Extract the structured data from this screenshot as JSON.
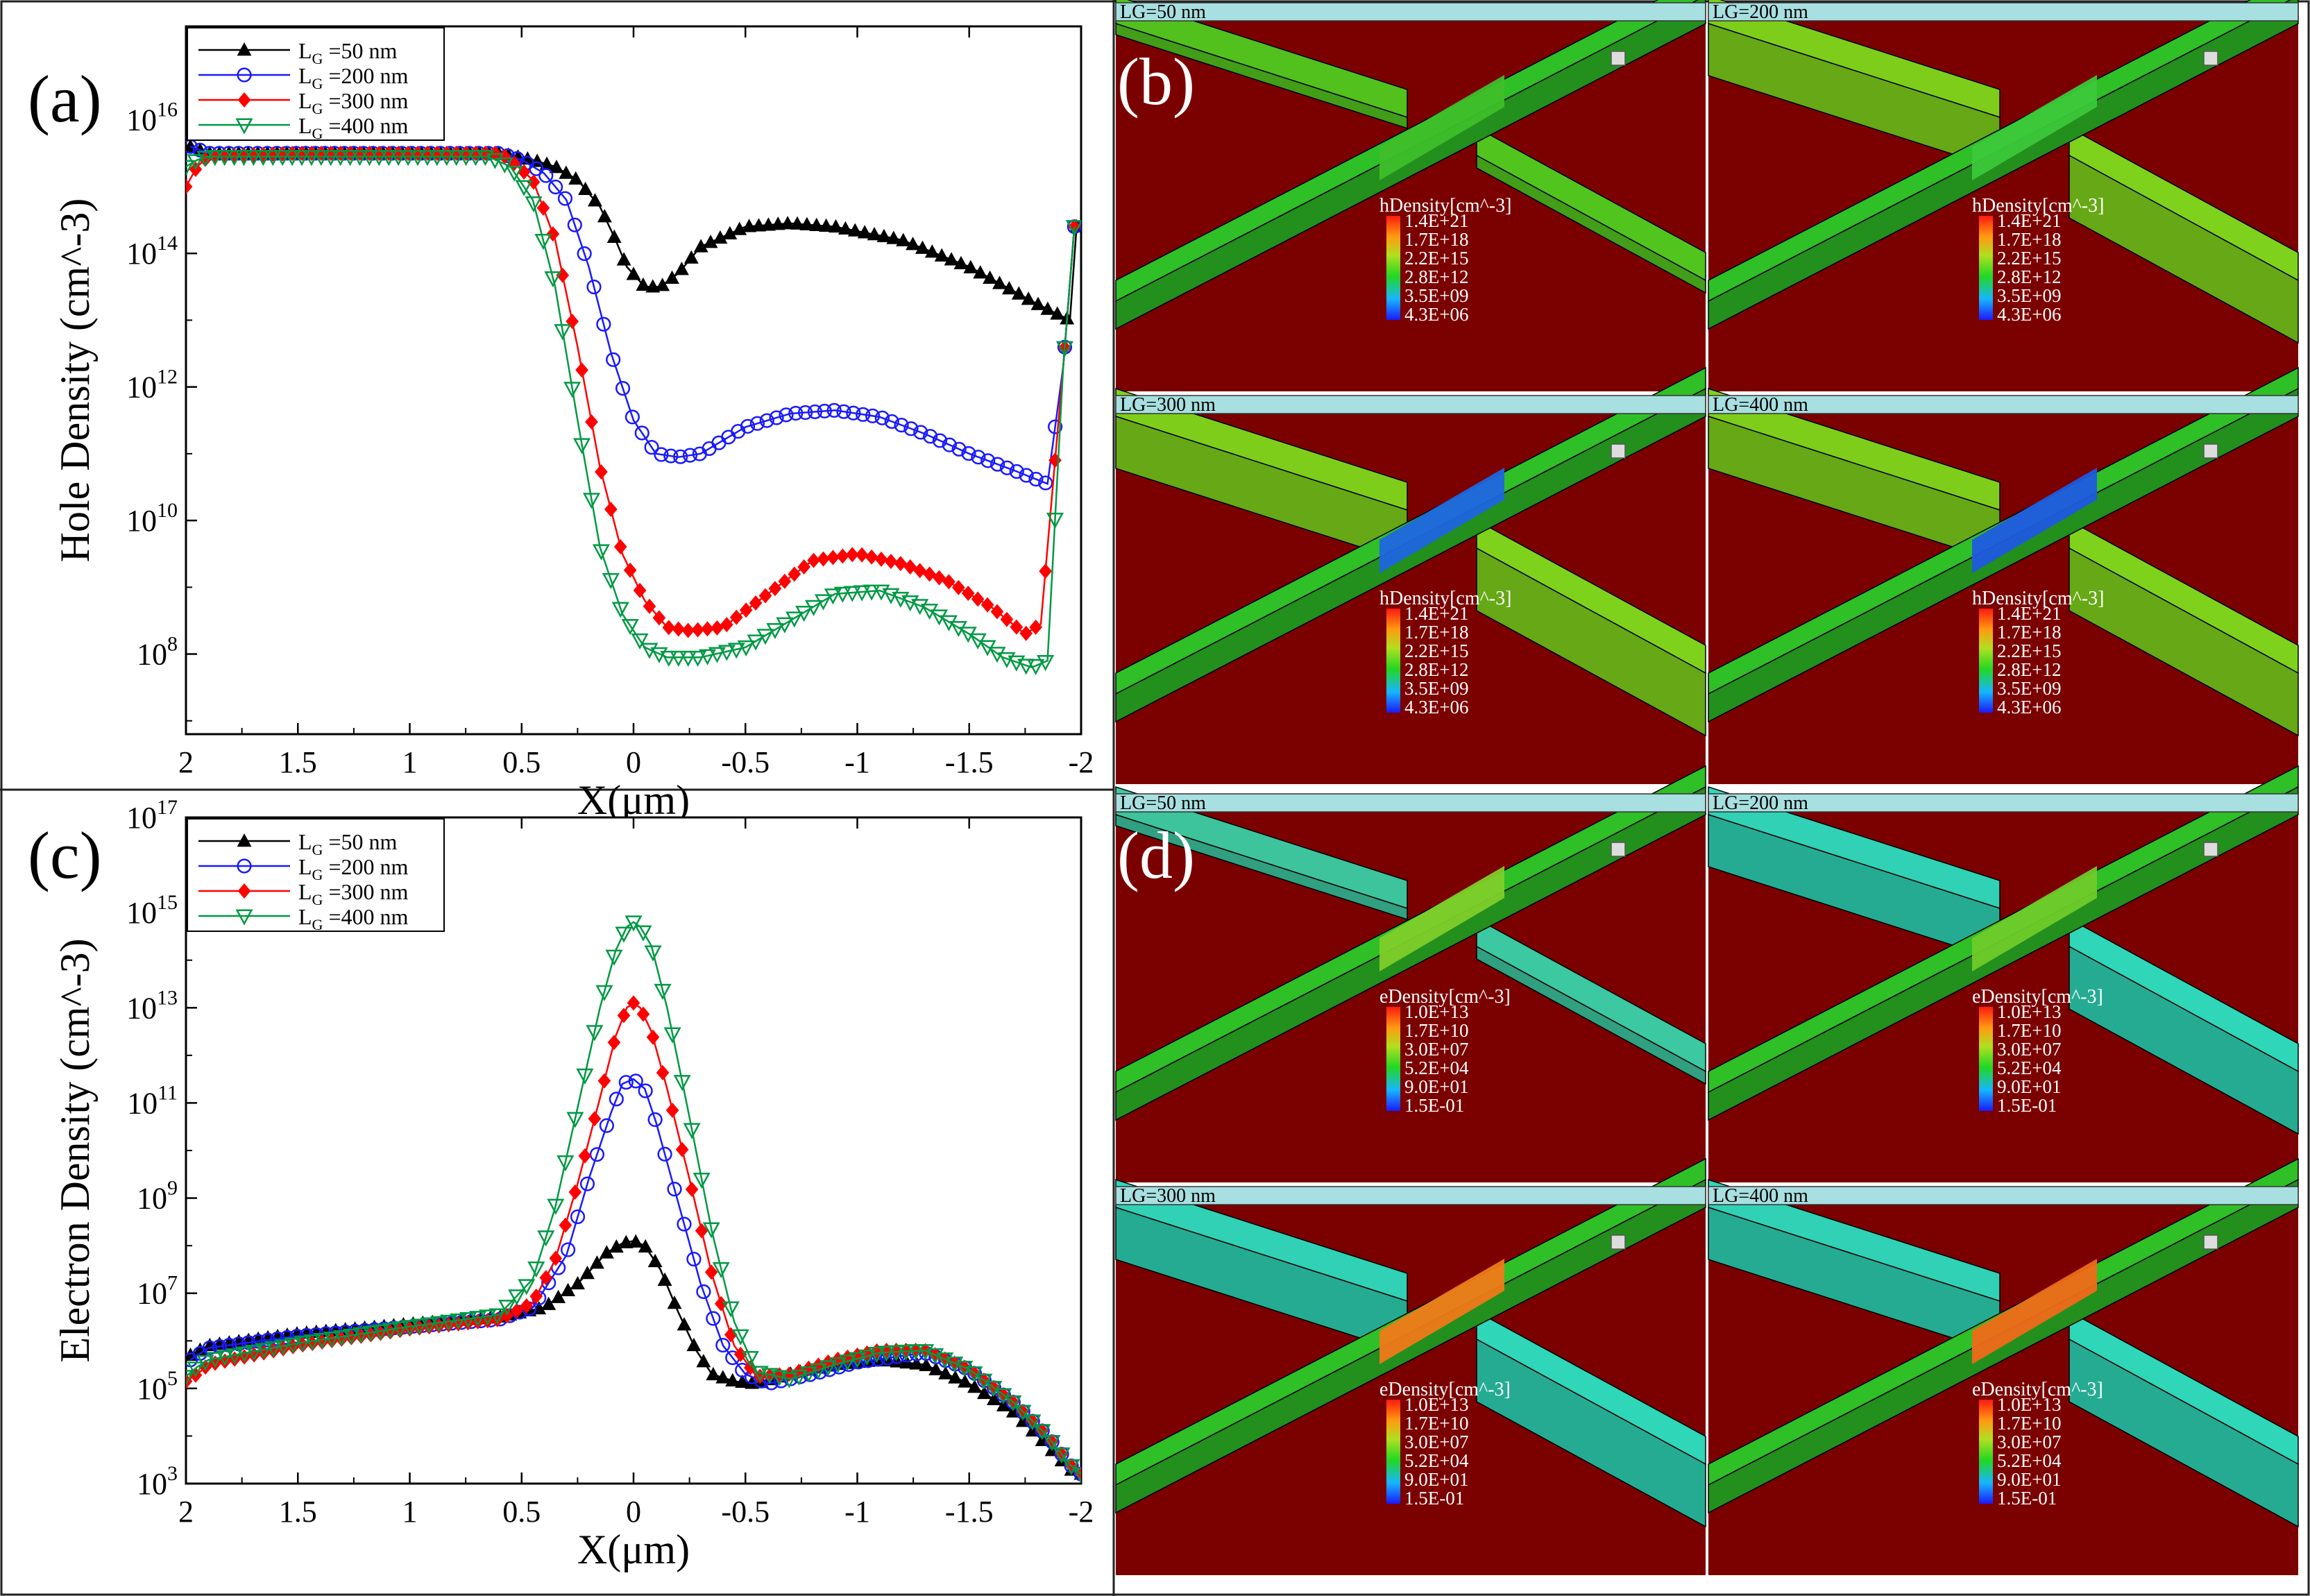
{
  "panel_labels": [
    "(a)",
    "(b)",
    "(c)",
    "(d)"
  ],
  "legend_entries": [
    {
      "prefix": "L",
      "sub": "G",
      "text": " =50 nm",
      "color": "#000000",
      "marker": "triangle"
    },
    {
      "prefix": "L",
      "sub": "G",
      "text": " =200 nm",
      "color": "#1a1aff",
      "marker": "circle"
    },
    {
      "prefix": "L",
      "sub": "G",
      "text": " =300 nm",
      "color": "#ff0000",
      "marker": "diamond"
    },
    {
      "prefix": "L",
      "sub": "G",
      "text": " =400 nm",
      "color": "#009944",
      "marker": "triangle-down"
    }
  ],
  "chart_data": [
    {
      "id": "a",
      "type": "line",
      "scale_y": "log",
      "xlabel": "X(μm)",
      "ylabel": "Hole Density (cm^-3)",
      "xlim": [
        2,
        -2
      ],
      "ylim_exp": [
        6.8,
        17.4
      ],
      "x_ticks": [
        2,
        1.5,
        1,
        0.5,
        0,
        -0.5,
        -1,
        -1.5,
        -2
      ],
      "x_tick_labels": [
        "2",
        "1.5",
        "1",
        "0.5",
        "0",
        "-0.5",
        "-1",
        "-1.5",
        "-2"
      ],
      "y_tick_exps": [
        8,
        10,
        12,
        14,
        16
      ],
      "series": [
        {
          "name": "LG=50 nm",
          "x": [
            1.98,
            1.9,
            1.5,
            1.0,
            0.6,
            0.45,
            0.35,
            0.25,
            0.15,
            0.08,
            0.03,
            -0.05,
            -0.12,
            -0.2,
            -0.3,
            -0.5,
            -0.7,
            -0.9,
            -1.2,
            -1.5,
            -1.8,
            -1.95,
            -1.98
          ],
          "y": [
            15.6,
            15.5,
            15.5,
            15.5,
            15.5,
            15.4,
            15.3,
            15.1,
            14.7,
            14.2,
            13.8,
            13.5,
            13.5,
            13.7,
            14.1,
            14.4,
            14.45,
            14.4,
            14.2,
            13.8,
            13.25,
            13.0,
            14.4
          ]
        },
        {
          "name": "LG=200 nm",
          "x": [
            1.98,
            1.9,
            1.5,
            1.0,
            0.6,
            0.5,
            0.4,
            0.3,
            0.2,
            0.1,
            0.0,
            -0.1,
            -0.2,
            -0.3,
            -0.5,
            -0.7,
            -0.9,
            -1.1,
            -1.3,
            -1.5,
            -1.7,
            -1.85,
            -1.92,
            -1.97
          ],
          "y": [
            15.6,
            15.5,
            15.5,
            15.5,
            15.5,
            15.4,
            15.2,
            14.8,
            13.8,
            12.5,
            11.5,
            11.0,
            10.95,
            11.0,
            11.4,
            11.6,
            11.65,
            11.55,
            11.3,
            11.0,
            10.75,
            10.55,
            12.3,
            14.4
          ]
        },
        {
          "name": "LG=300 nm",
          "x": [
            2.0,
            1.95,
            1.9,
            1.5,
            1.0,
            0.6,
            0.55,
            0.45,
            0.35,
            0.25,
            0.15,
            0.05,
            -0.05,
            -0.15,
            -0.25,
            -0.4,
            -0.6,
            -0.8,
            -1.0,
            -1.2,
            -1.4,
            -1.6,
            -1.75,
            -1.82,
            -1.92,
            -1.97
          ],
          "y": [
            15.0,
            15.3,
            15.45,
            15.5,
            15.5,
            15.5,
            15.4,
            15.1,
            14.2,
            12.6,
            10.8,
            9.5,
            8.8,
            8.4,
            8.35,
            8.4,
            8.9,
            9.4,
            9.5,
            9.35,
            9.1,
            8.7,
            8.3,
            8.45,
            12.3,
            14.4
          ]
        },
        {
          "name": "LG=400 nm",
          "x": [
            2.0,
            1.95,
            1.9,
            1.5,
            1.0,
            0.65,
            0.55,
            0.45,
            0.35,
            0.25,
            0.15,
            0.05,
            -0.05,
            -0.15,
            -0.3,
            -0.5,
            -0.7,
            -0.9,
            -1.1,
            -1.3,
            -1.5,
            -1.65,
            -1.78,
            -1.85,
            -1.92,
            -1.97
          ],
          "y": [
            15.3,
            15.4,
            15.45,
            15.45,
            15.45,
            15.45,
            15.3,
            14.8,
            13.5,
            11.5,
            9.6,
            8.6,
            8.1,
            7.95,
            7.95,
            8.1,
            8.5,
            8.9,
            8.95,
            8.7,
            8.3,
            7.95,
            7.8,
            7.9,
            12.3,
            14.4
          ]
        }
      ]
    },
    {
      "id": "c",
      "type": "line",
      "scale_y": "log",
      "xlabel": "X(μm)",
      "ylabel": "Electron Density (cm^-3)",
      "xlim": [
        2,
        -2
      ],
      "ylim_exp": [
        3,
        17
      ],
      "x_ticks": [
        2,
        1.5,
        1,
        0.5,
        0,
        -0.5,
        -1,
        -1.5,
        -2
      ],
      "x_tick_labels": [
        "2",
        "1.5",
        "1",
        "0.5",
        "0",
        "-0.5",
        "-1",
        "-1.5",
        "-2"
      ],
      "y_tick_exps": [
        3,
        5,
        7,
        9,
        11,
        13,
        15,
        17
      ],
      "series": [
        {
          "name": "LG=50 nm",
          "x": [
            1.98,
            1.9,
            1.5,
            1.0,
            0.6,
            0.4,
            0.25,
            0.12,
            0.05,
            0.0,
            -0.05,
            -0.12,
            -0.2,
            -0.28,
            -0.35,
            -0.45,
            -0.55,
            -0.7,
            -0.9,
            -1.1,
            -1.3,
            -1.5,
            -1.7,
            -1.85,
            -1.95,
            -2.0
          ],
          "y": [
            5.7,
            5.9,
            6.15,
            6.35,
            6.5,
            6.7,
            7.2,
            7.85,
            8.05,
            8.1,
            8.0,
            7.5,
            6.6,
            5.8,
            5.3,
            5.15,
            5.1,
            5.3,
            5.5,
            5.6,
            5.5,
            5.1,
            4.5,
            3.8,
            3.3,
            3.2
          ]
        },
        {
          "name": "LG=200 nm",
          "x": [
            1.98,
            1.9,
            1.5,
            1.0,
            0.6,
            0.45,
            0.3,
            0.2,
            0.1,
            0.05,
            0.0,
            -0.05,
            -0.1,
            -0.2,
            -0.3,
            -0.4,
            -0.5,
            -0.6,
            -0.8,
            -1.0,
            -1.3,
            -1.5,
            -1.7,
            -1.85,
            -1.95,
            -2.0
          ],
          "y": [
            5.6,
            5.85,
            6.1,
            6.3,
            6.45,
            6.7,
            7.8,
            9.4,
            10.8,
            11.4,
            11.5,
            11.3,
            10.6,
            8.9,
            7.2,
            5.9,
            5.3,
            5.1,
            5.3,
            5.55,
            5.75,
            5.4,
            4.7,
            4.0,
            3.4,
            3.2
          ]
        },
        {
          "name": "LG=300 nm",
          "x": [
            2.0,
            1.95,
            1.9,
            1.5,
            1.0,
            0.6,
            0.45,
            0.35,
            0.25,
            0.15,
            0.08,
            0.03,
            0.0,
            -0.03,
            -0.08,
            -0.15,
            -0.25,
            -0.35,
            -0.45,
            -0.55,
            -0.7,
            -0.9,
            -1.1,
            -1.3,
            -1.5,
            -1.7,
            -1.85,
            -1.95,
            -2.0
          ],
          "y": [
            5.15,
            5.3,
            5.5,
            5.9,
            6.25,
            6.45,
            6.8,
            7.7,
            9.3,
            11.1,
            12.4,
            13.0,
            13.1,
            13.0,
            12.5,
            11.3,
            9.4,
            7.4,
            5.9,
            5.25,
            5.3,
            5.6,
            5.8,
            5.8,
            5.4,
            4.7,
            4.0,
            3.4,
            3.2
          ]
        },
        {
          "name": "LG=400 nm",
          "x": [
            2.0,
            1.95,
            1.9,
            1.5,
            1.0,
            0.6,
            0.45,
            0.35,
            0.25,
            0.15,
            0.08,
            0.03,
            0.0,
            -0.03,
            -0.08,
            -0.15,
            -0.25,
            -0.35,
            -0.45,
            -0.55,
            -0.7,
            -0.9,
            -1.1,
            -1.3,
            -1.5,
            -1.7,
            -1.85,
            -1.95,
            -2.0
          ],
          "y": [
            5.25,
            5.45,
            5.6,
            5.95,
            6.3,
            6.55,
            7.3,
            8.8,
            10.9,
            13.0,
            14.2,
            14.7,
            14.8,
            14.7,
            14.3,
            13.0,
            10.7,
            8.3,
            6.4,
            5.35,
            5.2,
            5.5,
            5.75,
            5.8,
            5.4,
            4.7,
            4.0,
            3.4,
            3.2
          ]
        }
      ]
    }
  ],
  "sim_panels": {
    "b": {
      "legend_title": "hDensity[cm^-3]",
      "legend_values": [
        "1.4E+21",
        "1.7E+18",
        "2.2E+15",
        "2.8E+12",
        "3.5E+09",
        "4.3E+06"
      ],
      "tiles": [
        {
          "label": "LG=50 nm",
          "gate_color": "#52c41e",
          "channel_color": "#3fbf2a"
        },
        {
          "label": "LG=200 nm",
          "gate_color": "#7fd21c",
          "channel_color": "#3cc83a"
        },
        {
          "label": "LG=300 nm",
          "gate_color": "#7fd21c",
          "channel_color": "#1f66e0"
        },
        {
          "label": "LG=400 nm",
          "gate_color": "#7fd21c",
          "channel_color": "#1f5ae0"
        }
      ]
    },
    "d": {
      "legend_title": "eDensity[cm^-3]",
      "legend_values": [
        "1.0E+13",
        "1.7E+10",
        "3.0E+07",
        "5.2E+04",
        "9.0E+01",
        "1.5E-01"
      ],
      "tiles": [
        {
          "label": "LG=50 nm",
          "gate_color": "#3cc8a0",
          "channel_color": "#7fce2a"
        },
        {
          "label": "LG=200 nm",
          "gate_color": "#2fd6b8",
          "channel_color": "#6fcb2a"
        },
        {
          "label": "LG=300 nm",
          "gate_color": "#2fd6b8",
          "channel_color": "#f07a18"
        },
        {
          "label": "LG=400 nm",
          "gate_color": "#2fd6b8",
          "channel_color": "#f06a18"
        }
      ]
    },
    "background_color": "#7b0000",
    "wire_color": "#2fbf26",
    "label_bar_color": "#a8dfe0"
  }
}
